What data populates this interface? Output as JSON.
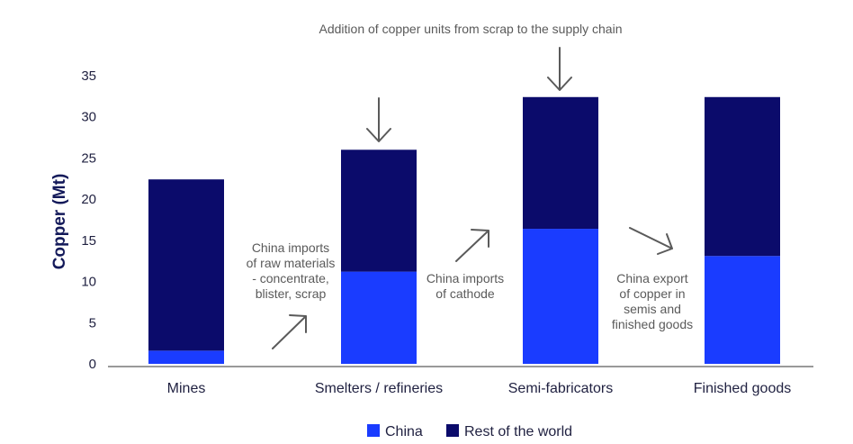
{
  "chart_data": {
    "type": "bar",
    "stacked": true,
    "categories": [
      "Mines",
      "Smelters / refineries",
      "Semi-fabricators",
      "Finished goods"
    ],
    "series": [
      {
        "name": "China",
        "values": [
          1.6,
          11.2,
          16.4,
          13.1
        ],
        "color": "#1a3cff"
      },
      {
        "name": "Rest of the world",
        "values": [
          20.8,
          14.8,
          16.0,
          19.3
        ],
        "color": "#0b0b6b"
      }
    ],
    "ylabel": "Copper (Mt)",
    "ylim": [
      0,
      35
    ],
    "yticks": [
      "0",
      "5",
      "10",
      "15",
      "20",
      "25",
      "30",
      "35"
    ],
    "grid": false,
    "legend_position": "bottom-center",
    "annotations": {
      "top": "Addition of copper units from scrap to the supply chain",
      "raw_materials": [
        "China imports",
        "of raw materials",
        "- concentrate,",
        "blister, scrap"
      ],
      "cathode": [
        "China imports",
        "of cathode"
      ],
      "export": [
        "China export",
        "of copper in",
        "semis and",
        "finished goods"
      ]
    }
  }
}
